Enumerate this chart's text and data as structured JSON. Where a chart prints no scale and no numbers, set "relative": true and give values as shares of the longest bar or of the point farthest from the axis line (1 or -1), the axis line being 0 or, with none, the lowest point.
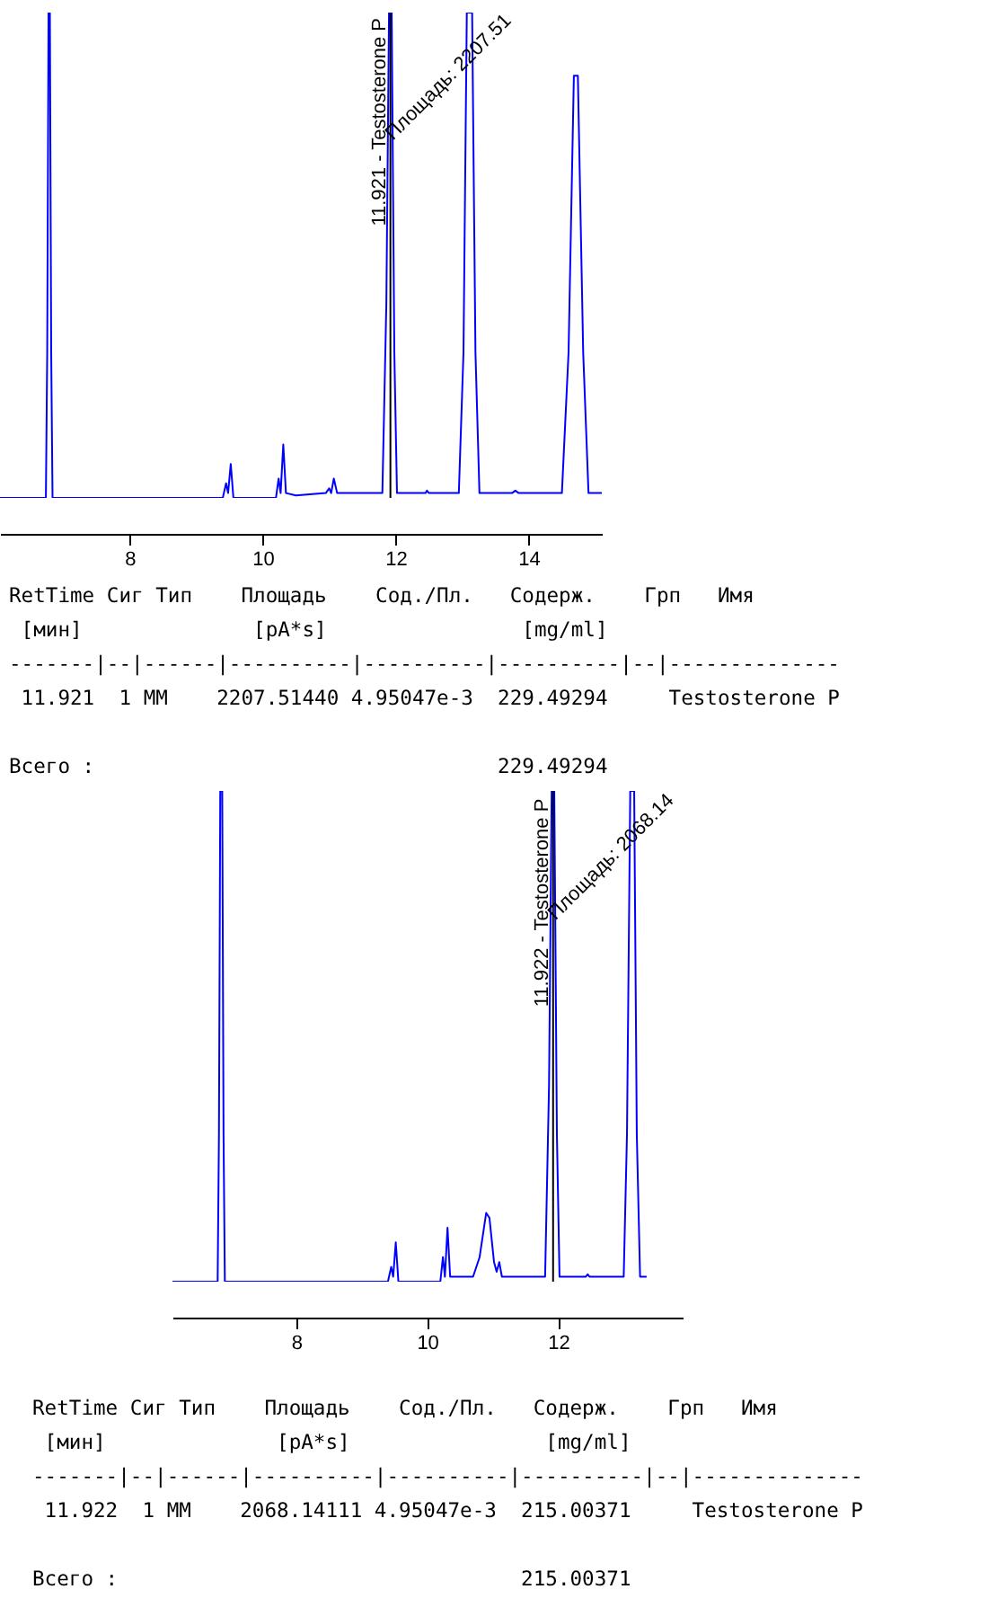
{
  "chart_data": [
    {
      "type": "line",
      "relative": true,
      "xlim": [
        6.05,
        15.1
      ],
      "xticks": [
        8,
        10,
        12,
        14
      ],
      "grid": false,
      "series": [
        {
          "color": "#0000ff",
          "x": [
            6.05,
            6.74,
            6.76,
            6.78,
            6.8,
            6.82,
            6.84,
            9.4,
            9.45,
            9.48,
            9.52,
            9.56,
            10.2,
            10.24,
            10.27,
            10.31,
            10.35,
            10.5,
            10.95,
            11.0,
            11.03,
            11.07,
            11.12,
            11.8,
            11.86,
            11.9,
            11.94,
            11.98,
            12.02,
            12.45,
            12.47,
            12.5,
            12.95,
            13.02,
            13.07,
            13.15,
            13.2,
            13.26,
            13.75,
            13.8,
            13.85,
            14.5,
            14.6,
            14.68,
            14.74,
            14.82,
            14.9,
            15.1
          ],
          "values": [
            0,
            0,
            0.3,
            1,
            1,
            0.3,
            0,
            0,
            0.03,
            0.01,
            0.07,
            0,
            0,
            0.04,
            0.01,
            0.11,
            0.01,
            0.005,
            0.01,
            0.02,
            0.01,
            0.04,
            0.01,
            0.01,
            0.4,
            1,
            1,
            0.3,
            0.01,
            0.01,
            0.015,
            0.01,
            0.01,
            0.3,
            1,
            1,
            0.3,
            0.01,
            0.01,
            0.015,
            0.01,
            0.01,
            0.3,
            0.87,
            0.87,
            0.3,
            0.01,
            0.01
          ]
        }
      ],
      "ref_lines": [
        {
          "axis": "x",
          "value": 11.921,
          "label": "11.921 - Testosterone P",
          "color": "#000000"
        }
      ],
      "annotations": [
        {
          "text": "Площадь: 2207.51",
          "x": 11.921,
          "y": 0.72
        },
        "RetTime Сиг Тип    Площадь    Сод./Пл.   Содерж.    Грп   Имя",
        " [мин]              [pA*s]                [mg/ml]",
        "-------|--|------|----------|----------|----------|--|--------------",
        " 11.921  1 MM    2207.51440 4.95047e-3  229.49294     Testosterone P",
        "Всего :                                 229.49294"
      ]
    },
    {
      "type": "line",
      "relative": true,
      "xlim": [
        6.11,
        13.9
      ],
      "xticks": [
        8,
        10,
        12
      ],
      "grid": false,
      "series": [
        {
          "color": "#0000ff",
          "x": [
            6.11,
            6.8,
            6.82,
            6.84,
            6.87,
            6.89,
            6.91,
            9.4,
            9.45,
            9.48,
            9.52,
            9.56,
            10.2,
            10.24,
            10.27,
            10.31,
            10.35,
            10.7,
            10.8,
            10.9,
            10.95,
            11.02,
            11.06,
            11.1,
            11.14,
            11.8,
            11.86,
            11.9,
            11.94,
            11.98,
            12.02,
            12.42,
            12.45,
            12.48,
            13.0,
            13.05,
            13.1,
            13.16,
            13.2,
            13.25,
            13.35
          ],
          "values": [
            0,
            0,
            0.3,
            1,
            1,
            0.3,
            0,
            0,
            0.03,
            0.01,
            0.08,
            0,
            0,
            0.05,
            0.01,
            0.11,
            0.01,
            0.01,
            0.05,
            0.14,
            0.13,
            0.04,
            0.02,
            0.04,
            0.01,
            0.01,
            0.4,
            1,
            1,
            0.3,
            0.01,
            0.01,
            0.015,
            0.01,
            0.01,
            0.3,
            1,
            1,
            0.3,
            0.01,
            0.01
          ]
        }
      ],
      "ref_lines": [
        {
          "axis": "x",
          "value": 11.922,
          "label": "11.922 - Testosterone P",
          "color": "#000000"
        }
      ],
      "annotations": [
        {
          "text": "Площадь: 2068.14",
          "x": 11.922,
          "y": 0.72
        },
        "RetTime Сиг Тип    Площадь    Сод./Пл.   Содерж.    Грп   Имя",
        " [мин]              [pA*s]                [mg/ml]",
        "-------|--|------|----------|----------|----------|--|--------------",
        " 11.922  1 MM    2068.14111 4.95047e-3  215.00371     Testosterone P",
        "Всего :                                 215.00371"
      ]
    }
  ]
}
